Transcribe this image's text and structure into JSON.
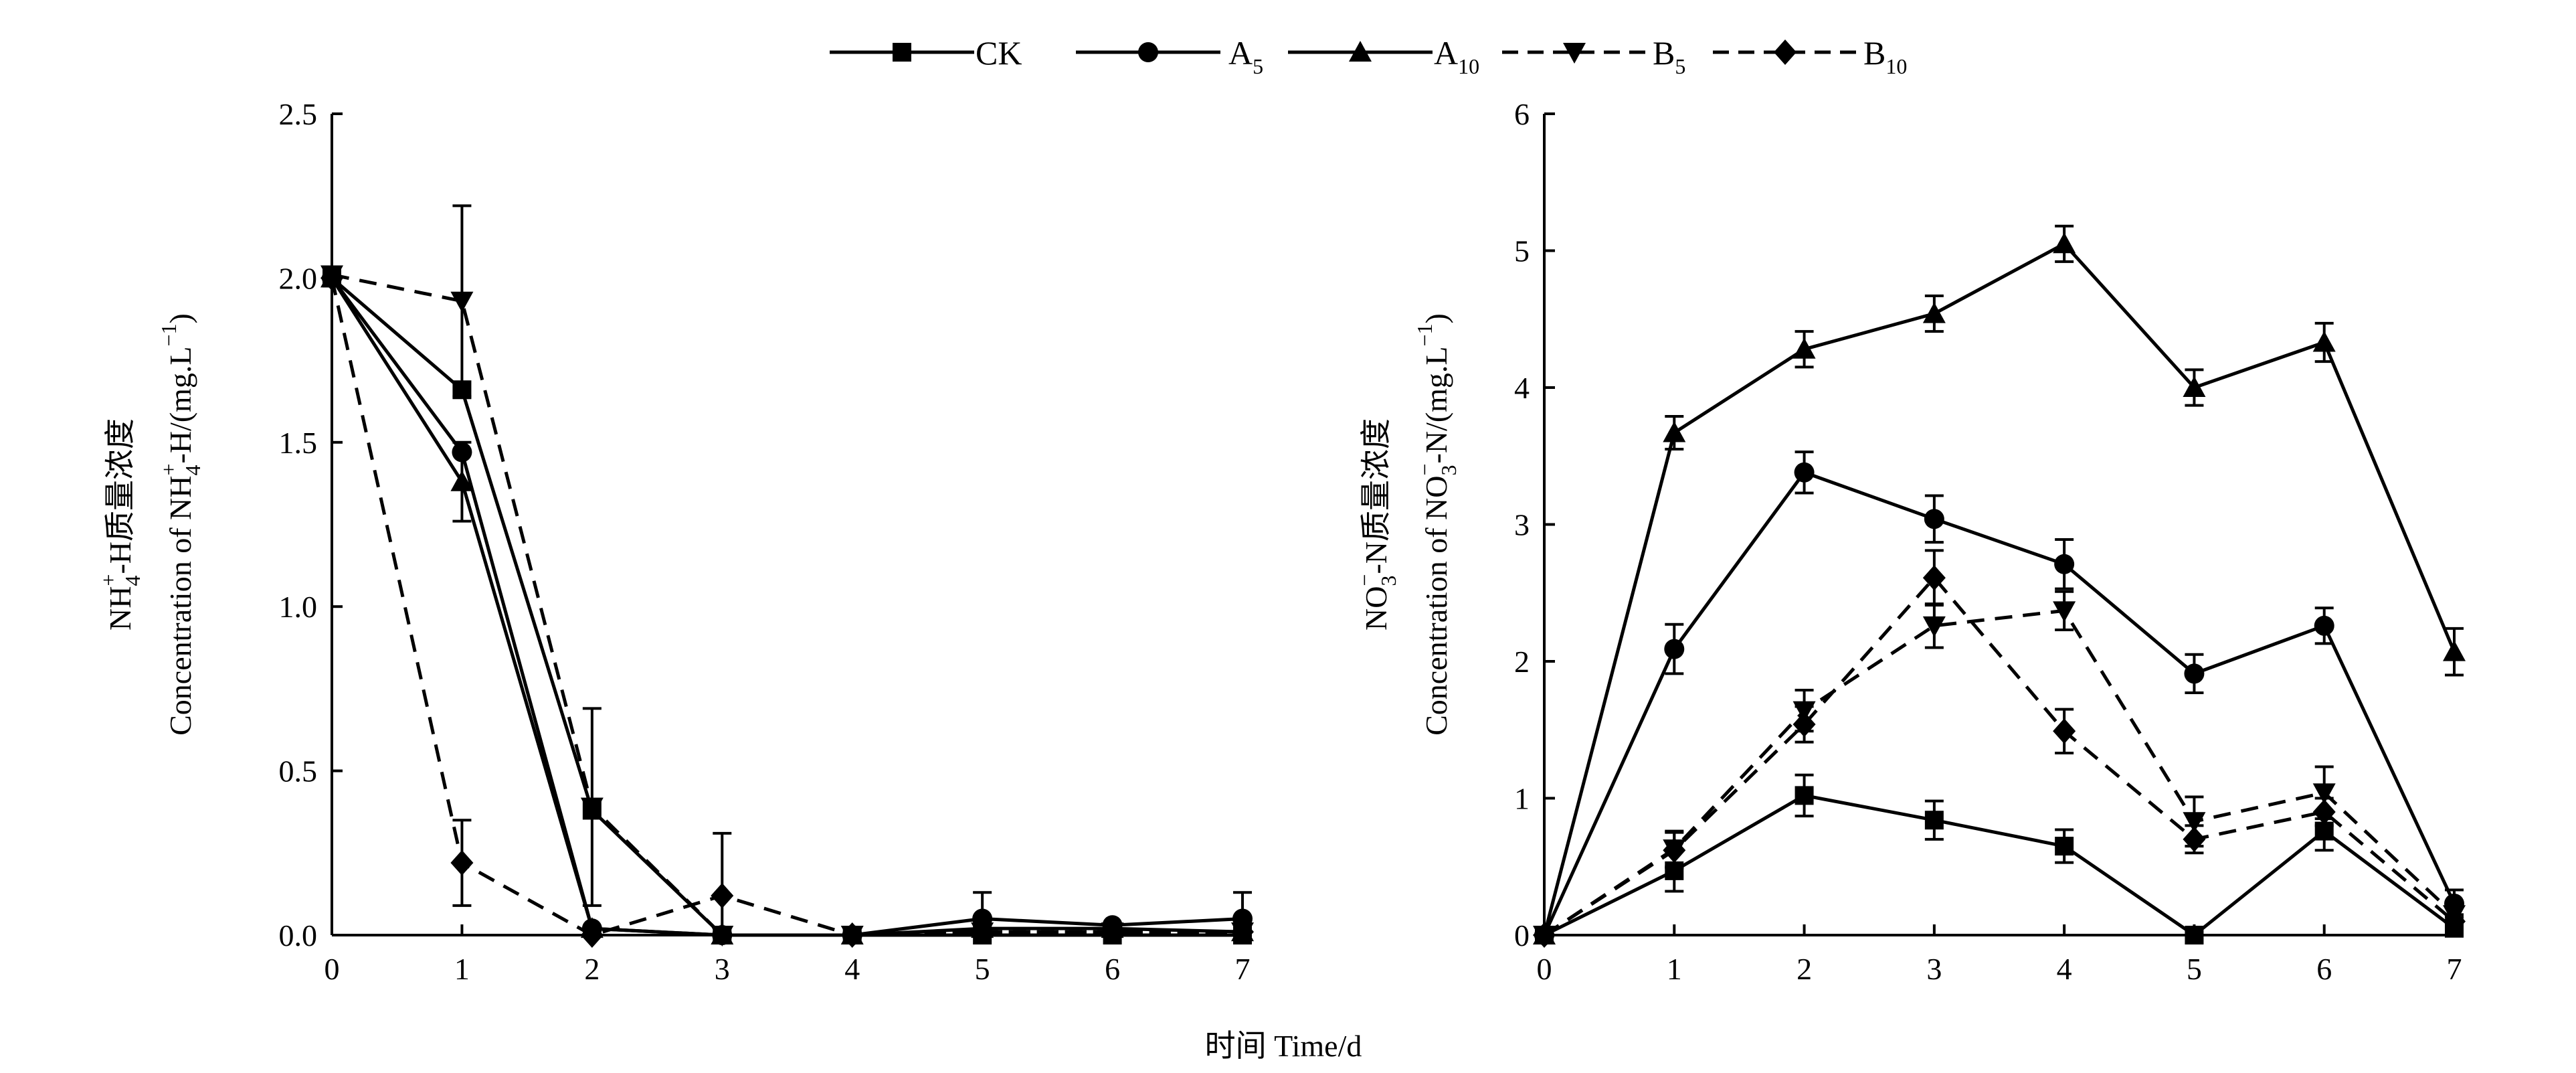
{
  "chart_data": [
    {
      "type": "line",
      "panel": "left",
      "ylabel_cn": "NH4+-H质量浓度",
      "ylabel_cn_parts": [
        "NH",
        "4",
        "+",
        "-H质量浓度"
      ],
      "ylabel_en": "Concentration of NH4+-H/(mg.L−1)",
      "ylabel_en_parts": [
        "Concentration of NH",
        "4",
        "+",
        "-H/(mg.L",
        "−1",
        ")"
      ],
      "xlim": [
        0,
        7
      ],
      "ylim": [
        0,
        2.5
      ],
      "x_ticks": [
        "0",
        "1",
        "2",
        "3",
        "4",
        "5",
        "6",
        "7"
      ],
      "y_ticks": [
        "0.0",
        "0.5",
        "1.0",
        "1.5",
        "2.0",
        "2.5"
      ],
      "x": [
        0,
        1,
        2,
        3,
        4,
        5,
        6,
        7
      ],
      "series": [
        {
          "name": "CK",
          "values": [
            2.0,
            1.66,
            0.38,
            0.0,
            0.0,
            0.0,
            0.0,
            0.0
          ],
          "errors": [
            0,
            0,
            0,
            0,
            0,
            0,
            0,
            0
          ]
        },
        {
          "name": "A5",
          "values": [
            2.0,
            1.47,
            0.02,
            0.0,
            0.0,
            0.05,
            0.03,
            0.05
          ],
          "errors": [
            0,
            0,
            0,
            0,
            0,
            0.08,
            0,
            0.08
          ]
        },
        {
          "name": "A10",
          "values": [
            2.0,
            1.38,
            0.02,
            0.0,
            0.0,
            0.02,
            0.02,
            0.01
          ],
          "errors": [
            0,
            0.12,
            0,
            0,
            0,
            0,
            0,
            0
          ]
        },
        {
          "name": "B5",
          "values": [
            2.01,
            1.93,
            0.39,
            0.0,
            0.0,
            0.01,
            0.01,
            0.01
          ],
          "errors": [
            0,
            0.29,
            0.3,
            0,
            0,
            0,
            0,
            0
          ]
        },
        {
          "name": "B10",
          "values": [
            2.0,
            0.22,
            0.0,
            0.12,
            0.0,
            0.01,
            0.01,
            0.01
          ],
          "errors": [
            0,
            0.13,
            0,
            0.19,
            0,
            0,
            0,
            0
          ]
        }
      ]
    },
    {
      "type": "line",
      "panel": "right",
      "ylabel_cn": "NO3−-N质量浓度",
      "ylabel_cn_parts": [
        "NO",
        "3",
        "−",
        "-N质量浓度"
      ],
      "ylabel_en": "Concentration of NO3−-N/(mg.L−1)",
      "ylabel_en_parts": [
        "Concentration of NO",
        "3",
        "−",
        "-N/(mg.L",
        "−1",
        ")"
      ],
      "xlim": [
        0,
        7
      ],
      "ylim": [
        0,
        6
      ],
      "x_ticks": [
        "0",
        "1",
        "2",
        "3",
        "4",
        "5",
        "6",
        "7"
      ],
      "y_ticks": [
        "0",
        "1",
        "2",
        "3",
        "4",
        "5",
        "6"
      ],
      "x": [
        0,
        1,
        2,
        3,
        4,
        5,
        6,
        7
      ],
      "series": [
        {
          "name": "CK",
          "values": [
            0.0,
            0.47,
            1.02,
            0.84,
            0.65,
            0.0,
            0.76,
            0.05
          ],
          "errors": [
            0,
            0.15,
            0.15,
            0.14,
            0.12,
            0,
            0.14,
            0.05
          ]
        },
        {
          "name": "A5",
          "values": [
            0.0,
            2.09,
            3.38,
            3.04,
            2.71,
            1.91,
            2.26,
            0.23
          ],
          "errors": [
            0,
            0.18,
            0.15,
            0.17,
            0.18,
            0.14,
            0.13,
            0.1
          ]
        },
        {
          "name": "A10",
          "values": [
            0.0,
            3.67,
            4.28,
            4.54,
            5.05,
            4.0,
            4.33,
            2.07
          ],
          "errors": [
            0,
            0.12,
            0.13,
            0.13,
            0.13,
            0.13,
            0.14,
            0.17
          ]
        },
        {
          "name": "B5",
          "values": [
            0.0,
            0.63,
            1.64,
            2.26,
            2.37,
            0.83,
            1.04,
            0.15
          ],
          "errors": [
            0,
            0.13,
            0.15,
            0.16,
            0.14,
            0.18,
            0.19,
            0.05
          ]
        },
        {
          "name": "B10",
          "values": [
            0.0,
            0.62,
            1.54,
            2.61,
            1.49,
            0.7,
            0.9,
            0.1
          ],
          "errors": [
            0,
            0.13,
            0.13,
            0.2,
            0.16,
            0.1,
            0.1,
            0.05
          ]
        }
      ]
    }
  ],
  "legend": [
    {
      "name": "CK",
      "main": "CK",
      "sub": "",
      "marker": "square",
      "dash": "solid"
    },
    {
      "name": "A5",
      "main": "A",
      "sub": "5",
      "marker": "circle",
      "dash": "solid"
    },
    {
      "name": "A10",
      "main": "A",
      "sub": "10",
      "marker": "triangle-up",
      "dash": "solid"
    },
    {
      "name": "B5",
      "main": "B",
      "sub": "5",
      "marker": "triangle-down",
      "dash": "dashed"
    },
    {
      "name": "B10",
      "main": "B",
      "sub": "10",
      "marker": "diamond",
      "dash": "dashed"
    }
  ],
  "xlabel": "时间 Time/d"
}
